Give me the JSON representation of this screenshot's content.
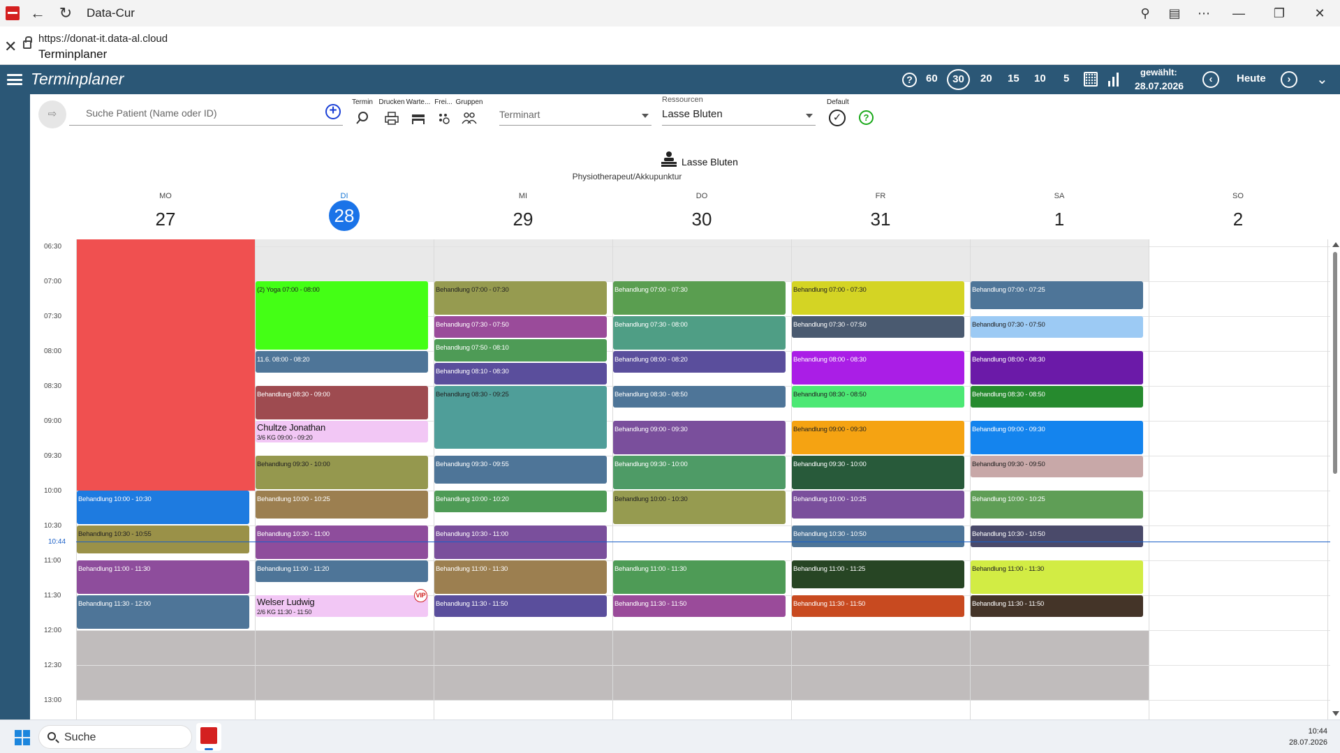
{
  "window": {
    "title": "Data-Cur",
    "url": "https://donat-it.data-al.cloud",
    "page_title": "Terminplaner"
  },
  "header": {
    "app_title": "Terminplaner",
    "zoom_options": [
      "60",
      "30",
      "20",
      "15",
      "10",
      "5"
    ],
    "zoom_selected": "30",
    "selected_label": "gewählt:",
    "selected_date": "28.07.2026",
    "today_label": "Heute"
  },
  "toolbar": {
    "search_placeholder": "Suche Patient (Name oder ID)",
    "tools": [
      "Termin",
      "Drucken",
      "Warte...",
      "Frei...",
      "Gruppen"
    ],
    "terminart_placeholder": "Terminart",
    "resources_label": "Ressourcen",
    "resource_value": "Lasse Bluten",
    "default_label": "Default"
  },
  "resource": {
    "name": "Lasse Bluten",
    "role": "Physiotherapeut/Akkupunktur"
  },
  "days": [
    {
      "weekday": "MO",
      "day": "27"
    },
    {
      "weekday": "DI",
      "day": "28",
      "today": true
    },
    {
      "weekday": "MI",
      "day": "29"
    },
    {
      "weekday": "DO",
      "day": "30"
    },
    {
      "weekday": "FR",
      "day": "31"
    },
    {
      "weekday": "SA",
      "day": "1"
    },
    {
      "weekday": "SO",
      "day": "2"
    }
  ],
  "times": [
    "06:30",
    "07:00",
    "07:30",
    "08:00",
    "08:30",
    "09:00",
    "09:30",
    "10:00",
    "10:30",
    "11:00",
    "11:30",
    "12:00",
    "12:30",
    "13:00"
  ],
  "now_time": "10:44",
  "events": [
    {
      "day": 0,
      "start": "10:00",
      "end": "10:30",
      "label": "Behandlung 10:00 - 10:30",
      "color": "#1e7be0"
    },
    {
      "day": 0,
      "start": "10:30",
      "end": "10:55",
      "label": "Behandlung 10:30 - 10:55",
      "color": "#9a9148",
      "dark": true
    },
    {
      "day": 0,
      "start": "11:00",
      "end": "11:30",
      "label": "Behandlung 11:00 - 11:30",
      "color": "#8e4d9c"
    },
    {
      "day": 0,
      "start": "11:30",
      "end": "12:00",
      "label": "Behandlung 11:30 - 12:00",
      "color": "#4e7598"
    },
    {
      "day": 1,
      "start": "07:00",
      "end": "08:00",
      "label": "(2) Yoga 07:00 - 08:00",
      "color": "#44ff15",
      "dark": true
    },
    {
      "day": 1,
      "start": "08:00",
      "end": "08:20",
      "label": "11.6. 08:00 - 08:20",
      "color": "#4e7598"
    },
    {
      "day": 1,
      "start": "08:30",
      "end": "09:00",
      "label": "Behandlung 08:30 - 09:00",
      "color": "#9e4b50"
    },
    {
      "day": 1,
      "start": "09:00",
      "end": "09:20",
      "name": "Chultze Jonathan",
      "sub": "3/6 KG 09:00 - 09:20",
      "color": "#f2c7f5",
      "patient": true
    },
    {
      "day": 1,
      "start": "09:30",
      "end": "10:00",
      "label": "Behandlung 09:30 - 10:00",
      "color": "#95984e",
      "dark": true
    },
    {
      "day": 1,
      "start": "10:00",
      "end": "10:25",
      "label": "Behandlung 10:00 - 10:25",
      "color": "#9c7f50"
    },
    {
      "day": 1,
      "start": "10:30",
      "end": "11:00",
      "label": "Behandlung 10:30 - 11:00",
      "color": "#8e4d9c"
    },
    {
      "day": 1,
      "start": "11:00",
      "end": "11:20",
      "label": "Behandlung 11:00 - 11:20",
      "color": "#4e7598"
    },
    {
      "day": 1,
      "start": "11:30",
      "end": "11:50",
      "name": "Welser Ludwig",
      "sub": "2/6 KG 11:30 - 11:50",
      "color": "#f2c7f5",
      "patient": true,
      "vip": "VIP"
    },
    {
      "day": 2,
      "start": "07:00",
      "end": "07:30",
      "label": "Behandlung 07:00 - 07:30",
      "color": "#969b50",
      "dark": true
    },
    {
      "day": 2,
      "start": "07:30",
      "end": "07:50",
      "label": "Behandlung 07:30 - 07:50",
      "color": "#9a4b9a"
    },
    {
      "day": 2,
      "start": "07:50",
      "end": "08:10",
      "label": "Behandlung 07:50 - 08:10",
      "color": "#4e9b56"
    },
    {
      "day": 2,
      "start": "08:10",
      "end": "08:30",
      "label": "Behandlung 08:10 - 08:30",
      "color": "#5a4e9c"
    },
    {
      "day": 2,
      "start": "08:30",
      "end": "09:25",
      "label": "Behandlung 08:30 - 09:25",
      "color": "#4f9e99",
      "dark": true
    },
    {
      "day": 2,
      "start": "09:30",
      "end": "09:55",
      "label": "Behandlung 09:30 - 09:55",
      "color": "#4e7598"
    },
    {
      "day": 2,
      "start": "10:00",
      "end": "10:20",
      "label": "Behandlung 10:00 - 10:20",
      "color": "#4e9b56"
    },
    {
      "day": 2,
      "start": "10:30",
      "end": "11:00",
      "label": "Behandlung 10:30 - 11:00",
      "color": "#7a4f9c"
    },
    {
      "day": 2,
      "start": "11:00",
      "end": "11:30",
      "label": "Behandlung 11:00 - 11:30",
      "color": "#9c7f50"
    },
    {
      "day": 2,
      "start": "11:30",
      "end": "11:50",
      "label": "Behandlung 11:30 - 11:50",
      "color": "#5a4e9c"
    },
    {
      "day": 3,
      "start": "07:00",
      "end": "07:30",
      "label": "Behandlung 07:00 - 07:30",
      "color": "#5a9e50"
    },
    {
      "day": 3,
      "start": "07:30",
      "end": "08:00",
      "label": "Behandlung 07:30 - 08:00",
      "color": "#4f9e85"
    },
    {
      "day": 3,
      "start": "08:00",
      "end": "08:20",
      "label": "Behandlung 08:00 - 08:20",
      "color": "#5a4e9c"
    },
    {
      "day": 3,
      "start": "08:30",
      "end": "08:50",
      "label": "Behandlung 08:30 - 08:50",
      "color": "#4e7598"
    },
    {
      "day": 3,
      "start": "09:00",
      "end": "09:30",
      "label": "Behandlung 09:00 - 09:30",
      "color": "#7a4f9c"
    },
    {
      "day": 3,
      "start": "09:30",
      "end": "10:00",
      "label": "Behandlung 09:30 - 10:00",
      "color": "#4e9b66"
    },
    {
      "day": 3,
      "start": "10:00",
      "end": "10:30",
      "label": "Behandlung 10:00 - 10:30",
      "color": "#969b50",
      "dark": true
    },
    {
      "day": 3,
      "start": "11:00",
      "end": "11:30",
      "label": "Behandlung 11:00 - 11:30",
      "color": "#4e9b56"
    },
    {
      "day": 3,
      "start": "11:30",
      "end": "11:50",
      "label": "Behandlung 11:30 - 11:50",
      "color": "#9a4b9a"
    },
    {
      "day": 4,
      "start": "07:00",
      "end": "07:30",
      "label": "Behandlung 07:00 - 07:30",
      "color": "#d4d424",
      "dark": true
    },
    {
      "day": 4,
      "start": "07:30",
      "end": "07:50",
      "label": "Behandlung 07:30 - 07:50",
      "color": "#4a5a70"
    },
    {
      "day": 4,
      "start": "08:00",
      "end": "08:30",
      "label": "Behandlung 08:00 - 08:30",
      "color": "#aa1ee6"
    },
    {
      "day": 4,
      "start": "08:30",
      "end": "08:50",
      "label": "Behandlung 08:30 - 08:50",
      "color": "#4ce874",
      "dark": true
    },
    {
      "day": 4,
      "start": "09:00",
      "end": "09:30",
      "label": "Behandlung 09:00 - 09:30",
      "color": "#f5a312",
      "dark": true
    },
    {
      "day": 4,
      "start": "09:30",
      "end": "10:00",
      "label": "Behandlung 09:30 - 10:00",
      "color": "#285a3a"
    },
    {
      "day": 4,
      "start": "10:00",
      "end": "10:25",
      "label": "Behandlung 10:00 - 10:25",
      "color": "#7a4f9c"
    },
    {
      "day": 4,
      "start": "10:30",
      "end": "10:50",
      "label": "Behandlung 10:30 - 10:50",
      "color": "#4e7598"
    },
    {
      "day": 4,
      "start": "11:00",
      "end": "11:25",
      "label": "Behandlung 11:00 - 11:25",
      "color": "#274524"
    },
    {
      "day": 4,
      "start": "11:30",
      "end": "11:50",
      "label": "Behandlung 11:30 - 11:50",
      "color": "#c84a20"
    },
    {
      "day": 5,
      "start": "07:00",
      "end": "07:25",
      "label": "Behandlung 07:00 - 07:25",
      "color": "#4e7598"
    },
    {
      "day": 5,
      "start": "07:30",
      "end": "07:50",
      "label": "Behandlung 07:30 - 07:50",
      "color": "#9ccaf4",
      "dark": true
    },
    {
      "day": 5,
      "start": "08:00",
      "end": "08:30",
      "label": "Behandlung 08:00 - 08:30",
      "color": "#6b1aa8"
    },
    {
      "day": 5,
      "start": "08:30",
      "end": "08:50",
      "label": "Behandlung 08:30 - 08:50",
      "color": "#268a2e"
    },
    {
      "day": 5,
      "start": "09:00",
      "end": "09:30",
      "label": "Behandlung 09:00 - 09:30",
      "color": "#1484ee"
    },
    {
      "day": 5,
      "start": "09:30",
      "end": "09:50",
      "label": "Behandlung 09:30 - 09:50",
      "color": "#c8a8a8",
      "dark": true
    },
    {
      "day": 5,
      "start": "10:00",
      "end": "10:25",
      "label": "Behandlung 10:00 - 10:25",
      "color": "#5f9e56"
    },
    {
      "day": 5,
      "start": "10:30",
      "end": "10:50",
      "label": "Behandlung 10:30 - 10:50",
      "color": "#4a4a6a"
    },
    {
      "day": 5,
      "start": "11:00",
      "end": "11:30",
      "label": "Behandlung 11:00 - 11:30",
      "color": "#d2ec44",
      "dark": true
    },
    {
      "day": 5,
      "start": "11:30",
      "end": "11:50",
      "label": "Behandlung 11:30 - 11:50",
      "color": "#443428"
    }
  ],
  "blocked": [
    {
      "day": 0,
      "start": "06:30",
      "end": "10:00",
      "color": "#f05050"
    }
  ],
  "taskbar": {
    "search_label": "Suche",
    "clock_time": "10:44",
    "clock_date": "28.07.2026"
  }
}
